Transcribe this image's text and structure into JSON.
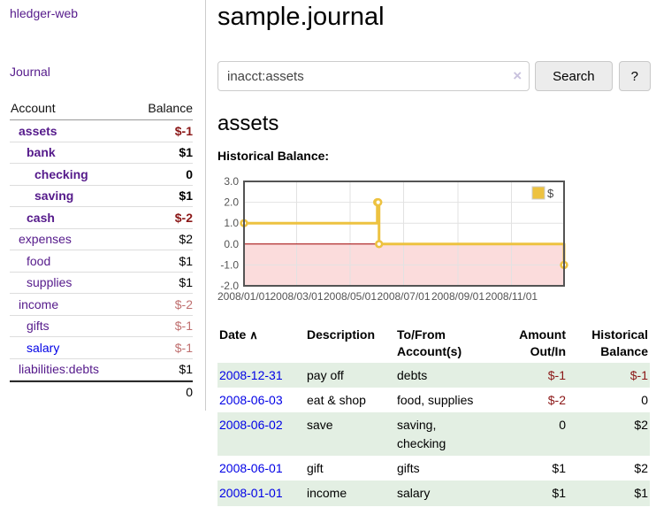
{
  "sidebar": {
    "brand": "hledger-web",
    "journal_link": "Journal",
    "accounts": {
      "header": {
        "account": "Account",
        "balance": "Balance"
      },
      "rows": [
        {
          "name": "assets",
          "balance": "$-1"
        },
        {
          "name": "bank",
          "balance": "$1"
        },
        {
          "name": "checking",
          "balance": "0"
        },
        {
          "name": "saving",
          "balance": "$1"
        },
        {
          "name": "cash",
          "balance": "$-2"
        },
        {
          "name": "expenses",
          "balance": "$2"
        },
        {
          "name": "food",
          "balance": "$1"
        },
        {
          "name": "supplies",
          "balance": "$1"
        },
        {
          "name": "income",
          "balance": "$-2"
        },
        {
          "name": "gifts",
          "balance": "$-1"
        },
        {
          "name": "salary",
          "balance": "$-1"
        },
        {
          "name": "liabilities:debts",
          "balance": "$1"
        }
      ],
      "total": "0"
    }
  },
  "main": {
    "title": "sample.journal",
    "search": {
      "query": "inacct:assets",
      "clear_icon": "×",
      "search_button": "Search",
      "help_button": "?"
    },
    "account_heading": "assets",
    "chart_title": "Historical Balance:",
    "register": {
      "headers": {
        "date": "Date",
        "sort_icon": "∧",
        "description": "Description",
        "accounts": "To/From Account(s)",
        "amount": "Amount Out/In",
        "balance": "Historical Balance"
      },
      "rows": [
        {
          "date": "2008-12-31",
          "description": "pay off",
          "accounts": "debts",
          "amount": "$-1",
          "balance": "$-1"
        },
        {
          "date": "2008-06-03",
          "description": "eat & shop",
          "accounts": "food, supplies",
          "amount": "$-2",
          "balance": "0"
        },
        {
          "date": "2008-06-02",
          "description": "save",
          "accounts": "saving, checking",
          "amount": "0",
          "balance": "$2"
        },
        {
          "date": "2008-06-01",
          "description": "gift",
          "accounts": "gifts",
          "amount": "$1",
          "balance": "$2"
        },
        {
          "date": "2008-01-01",
          "description": "income",
          "accounts": "salary",
          "amount": "$1",
          "balance": "$1"
        }
      ]
    }
  },
  "chart_data": {
    "type": "line",
    "steps": true,
    "title": "Historical Balance",
    "series": [
      {
        "name": "$",
        "color": "#EDC240",
        "points": [
          [
            "2008-01-01",
            1
          ],
          [
            "2008-06-01",
            2
          ],
          [
            "2008-06-02",
            2
          ],
          [
            "2008-06-03",
            0
          ],
          [
            "2008-12-31",
            -1
          ]
        ]
      }
    ],
    "x_ticks": [
      "2008/01/01",
      "2008/03/01",
      "2008/05/01",
      "2008/07/01",
      "2008/09/01",
      "2008/11/01"
    ],
    "y_ticks": [
      "3.0",
      "2.0",
      "1.0",
      "0.0",
      "-1.0",
      "-2.0"
    ],
    "xlim": [
      "2008-01-01",
      "2008-12-31"
    ],
    "ylim": [
      -2,
      3
    ],
    "grid": true,
    "legend": {
      "label": "$",
      "position": "ne"
    },
    "colors": {
      "negative_region": "#fbdcdc",
      "zero_line": "#a40000",
      "grid": "#e2e2e2",
      "border": "#545454",
      "axis_text": "#545454"
    }
  },
  "colors": {
    "purple_link": "#551a8b",
    "blue_link": "#0000e6",
    "neg_strong": "#8b1717",
    "neg_weak": "#bf6f6f",
    "row_stripe": "#e3efe3"
  }
}
